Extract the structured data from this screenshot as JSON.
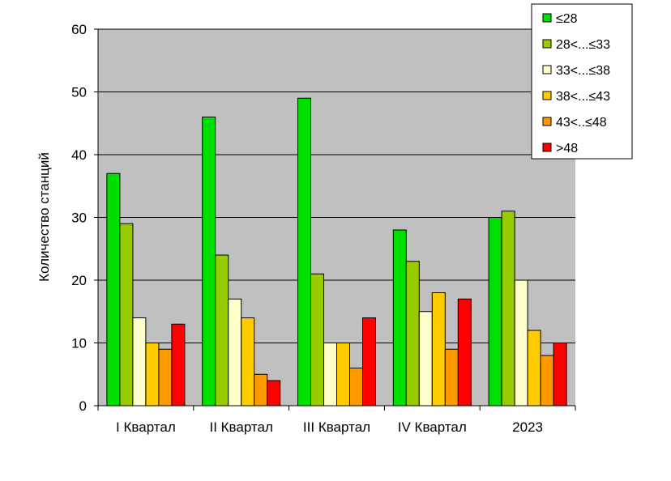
{
  "chart_data": {
    "type": "bar",
    "title": "",
    "xlabel": "",
    "ylabel": "Количество станций",
    "ylim": [
      0,
      60
    ],
    "yticks": [
      0,
      10,
      20,
      30,
      40,
      50,
      60
    ],
    "grid": true,
    "legend_position": "top-right",
    "categories": [
      "I Квартал",
      "II Квартал",
      "III Квартал",
      "IV Квартал",
      "2023"
    ],
    "series": [
      {
        "name": "≤28",
        "color": "#00e000",
        "values": [
          37,
          46,
          49,
          28,
          30
        ]
      },
      {
        "name": "28<...≤33",
        "color": "#99cc00",
        "values": [
          29,
          24,
          21,
          23,
          31
        ]
      },
      {
        "name": "33<...≤38",
        "color": "#ffffcc",
        "values": [
          14,
          17,
          10,
          15,
          20
        ]
      },
      {
        "name": "38<...≤43",
        "color": "#ffcc00",
        "values": [
          10,
          14,
          10,
          18,
          12
        ]
      },
      {
        "name": "43<..≤48",
        "color": "#ff9900",
        "values": [
          9,
          5,
          6,
          9,
          8
        ]
      },
      {
        "name": ">48",
        "color": "#ff0000",
        "values": [
          13,
          4,
          14,
          17,
          10
        ]
      }
    ],
    "plot_background": "#c0c0c0"
  }
}
